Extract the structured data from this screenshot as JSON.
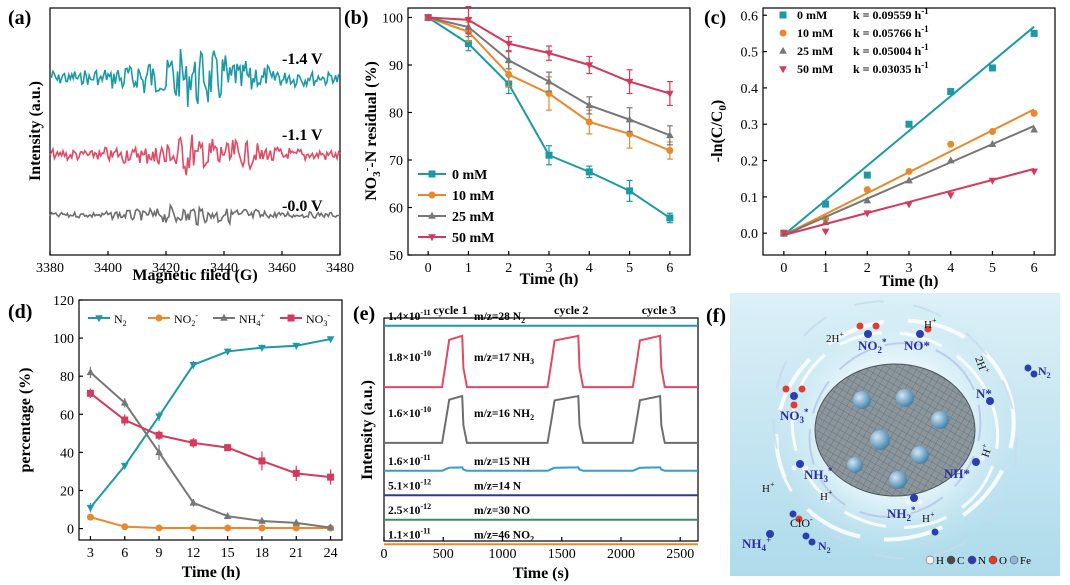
{
  "colors": {
    "teal": "#1b9aa6",
    "red": "#e04a64",
    "gray": "#6e6e6e",
    "orange": "#e8892b",
    "gray2": "#777777",
    "pink": "#d43a5b",
    "blue": "#2f7fc2",
    "navy": "#2c3b91",
    "green": "#3a8c6a",
    "sky_top": "#dcf0f7",
    "sky_bottom": "#aedbeb"
  },
  "panels": {
    "a": "(a)",
    "b": "(b)",
    "c": "(c)",
    "d": "(d)",
    "e": "(e)",
    "f": "(f)"
  },
  "chart_data": [
    {
      "panel": "a",
      "type": "line",
      "title": "",
      "xlabel": "Magnetic filed (G)",
      "ylabel": "Intensity (a.u.)",
      "xlim": [
        3380,
        3480
      ],
      "x_ticks": [
        3380,
        3400,
        3420,
        3440,
        3460,
        3480
      ],
      "series": [
        {
          "name": "-1.4 V",
          "label": "-1.4 V",
          "color": "#1b9aa6",
          "offset": 2.0,
          "amp": 1.0
        },
        {
          "name": "-1.1 V",
          "label": "-1.1 V",
          "color": "#e04a64",
          "offset": 1.0,
          "amp": 0.75
        },
        {
          "name": "-0.0 V",
          "label": "-0.0 V",
          "color": "#6e6e6e",
          "offset": 0.0,
          "amp": 0.35
        }
      ]
    },
    {
      "panel": "b",
      "type": "line",
      "title": "",
      "xlabel": "Time (h)",
      "ylabel": "NO3--N residual (%)",
      "ylabel_parts": {
        "a": "NO",
        "sub": "3",
        "sup": "-",
        "b": "-N residual (%)"
      },
      "xlim": [
        -0.5,
        6.5
      ],
      "ylim": [
        50,
        102
      ],
      "x_ticks": [
        0,
        1,
        2,
        3,
        4,
        5,
        6
      ],
      "y_ticks": [
        50,
        60,
        70,
        80,
        90,
        100
      ],
      "x": [
        0,
        1,
        2,
        3,
        4,
        5,
        6
      ],
      "series": [
        {
          "name": "0 mM",
          "color": "#1b9aa6",
          "marker": "square",
          "values": [
            100,
            94.5,
            86,
            71,
            67.5,
            63.5,
            57.8
          ],
          "err": [
            0.5,
            1.5,
            2.0,
            2.0,
            1.2,
            2.2,
            1.0
          ]
        },
        {
          "name": "10 mM",
          "color": "#e8892b",
          "marker": "circle",
          "values": [
            100,
            97,
            88,
            84,
            78,
            75.5,
            72
          ],
          "err": [
            0.5,
            2.0,
            2.5,
            3.5,
            2.5,
            3.0,
            1.8
          ]
        },
        {
          "name": "25 mM",
          "color": "#777777",
          "marker": "triangle-up",
          "values": [
            100,
            98,
            91,
            86.5,
            81.5,
            78.5,
            75.2
          ],
          "err": [
            0.5,
            2.0,
            1.8,
            2.0,
            1.8,
            2.5,
            2.0
          ]
        },
        {
          "name": "50 mM",
          "color": "#d43a5b",
          "marker": "triangle-down",
          "values": [
            100,
            99.5,
            94.5,
            92.5,
            90,
            86.5,
            84
          ],
          "err": [
            0.5,
            2.8,
            1.5,
            1.5,
            1.8,
            2.5,
            2.5
          ]
        }
      ]
    },
    {
      "panel": "c",
      "type": "scatter",
      "title": "",
      "xlabel": "Time (h)",
      "ylabel": "-ln(C/C0)",
      "ylabel_parts": {
        "a": "-ln(C/C",
        "sub": "0",
        "b": ")"
      },
      "xlim": [
        -0.5,
        6.5
      ],
      "ylim": [
        -0.06,
        0.62
      ],
      "x_ticks": [
        0,
        1,
        2,
        3,
        4,
        5,
        6
      ],
      "y_ticks": [
        0.0,
        0.1,
        0.2,
        0.3,
        0.4,
        0.5,
        0.6
      ],
      "x": [
        0,
        1,
        2,
        3,
        4,
        5,
        6
      ],
      "series": [
        {
          "name": "0 mM",
          "k_label": "k = 0.09559 h",
          "k": 0.09559,
          "color": "#1b9aa6",
          "marker": "square",
          "values": [
            0,
            0.08,
            0.16,
            0.3,
            0.39,
            0.455,
            0.55
          ]
        },
        {
          "name": "10 mM",
          "k_label": "k = 0.05766 h",
          "k": 0.05766,
          "color": "#e8892b",
          "marker": "circle",
          "values": [
            0,
            0.04,
            0.12,
            0.17,
            0.245,
            0.28,
            0.33
          ]
        },
        {
          "name": "25 mM",
          "k_label": "k = 0.05004 h",
          "k": 0.05004,
          "color": "#777777",
          "marker": "triangle-up",
          "values": [
            0,
            0.03,
            0.09,
            0.145,
            0.2,
            0.245,
            0.285
          ]
        },
        {
          "name": "50 mM",
          "k_label": "k = 0.03035 h",
          "k": 0.03035,
          "color": "#d43a5b",
          "marker": "triangle-down",
          "values": [
            0,
            0.005,
            0.055,
            0.08,
            0.105,
            0.145,
            0.17
          ]
        }
      ],
      "k_unit_sup": "-1"
    },
    {
      "panel": "d",
      "type": "line",
      "title": "",
      "xlabel": "Time (h)",
      "ylabel": "percentage (%)",
      "xlim": [
        2,
        25
      ],
      "ylim": [
        -6,
        120
      ],
      "x_ticks": [
        3,
        6,
        9,
        12,
        15,
        18,
        21,
        24
      ],
      "y_ticks": [
        0,
        20,
        40,
        60,
        80,
        100,
        120
      ],
      "x": [
        3,
        6,
        9,
        12,
        15,
        18,
        21,
        24
      ],
      "series": [
        {
          "name": "N2",
          "legend": {
            "a": "N",
            "sub": "2",
            "sup": ""
          },
          "color": "#1b9aa6",
          "marker": "triangle-down",
          "values": [
            11,
            33,
            59,
            86,
            93,
            95,
            96,
            99.5
          ],
          "err": [
            2.5,
            1.5,
            2.5,
            2.0,
            1.5,
            1.5,
            1.5,
            0.5
          ]
        },
        {
          "name": "NO2-",
          "legend": {
            "a": "NO",
            "sub": "2",
            "sup": "-"
          },
          "color": "#e8892b",
          "marker": "circle",
          "values": [
            6,
            1,
            0.3,
            0.3,
            0.3,
            0.3,
            0.3,
            0.3
          ],
          "err": [
            1.5,
            0.5,
            0.3,
            0.3,
            0.3,
            0.3,
            0.3,
            0.3
          ]
        },
        {
          "name": "NH4+",
          "legend": {
            "a": "NH",
            "sub": "4",
            "sup": "+"
          },
          "color": "#777777",
          "marker": "triangle-up",
          "values": [
            82,
            66,
            40,
            13.5,
            6.5,
            4,
            3,
            0.5
          ],
          "err": [
            3,
            2.5,
            4,
            2.0,
            1.5,
            1.5,
            1.0,
            0.5
          ]
        },
        {
          "name": "NO3-",
          "legend": {
            "a": "NO",
            "sub": "3",
            "sup": "-"
          },
          "color": "#d43a5b",
          "marker": "square",
          "values": [
            71,
            57,
            49,
            45,
            42.5,
            35.5,
            29,
            27
          ],
          "err": [
            2.5,
            3.0,
            2.5,
            2.5,
            1.5,
            5.0,
            4.0,
            4.0
          ]
        }
      ]
    },
    {
      "panel": "e",
      "type": "line",
      "title": "",
      "xlabel": "Time (s)",
      "ylabel": "Intensity (a.u.)",
      "xlim": [
        0,
        2650
      ],
      "x_ticks": [
        0,
        500,
        1000,
        1500,
        2000,
        2500
      ],
      "cycles": [
        "cycle 1",
        "cycle 2",
        "cycle 3"
      ],
      "cycle_positions_s": [
        560,
        1580,
        2320
      ],
      "pulses": [
        [
          490,
          660
        ],
        [
          1380,
          1640
        ],
        [
          2100,
          2330
        ]
      ],
      "series": [
        {
          "scale": "1.4×10",
          "exp": "-11",
          "label_a": "m/z=28 N",
          "label_sub": "2",
          "color": "#1b9aa6",
          "base": 0.965,
          "pulse": 0.0
        },
        {
          "scale": "1.8×10",
          "exp": "-10",
          "label_a": "m/z=17 NH",
          "label_sub": "3",
          "color": "#e04a64",
          "base": 0.69,
          "pulse": 0.23
        },
        {
          "scale": "1.6×10",
          "exp": "-10",
          "label_a": "m/z=16 NH",
          "label_sub": "2",
          "color": "#6e6e6e",
          "base": 0.44,
          "pulse": 0.21
        },
        {
          "scale": "1.6×10",
          "exp": "-11",
          "label_a": "m/z=15 NH",
          "label_sub": "",
          "color": "#2f9fd0",
          "base": 0.315,
          "pulse": 0.015
        },
        {
          "scale": "5.1×10",
          "exp": "-12",
          "label_a": "m/z=14 N",
          "label_sub": "",
          "color": "#2c3b91",
          "base": 0.205,
          "pulse": 0.0
        },
        {
          "scale": "2.5×10",
          "exp": "-12",
          "label_a": "m/z=30 NO",
          "label_sub": "",
          "color": "#3a8c6a",
          "base": 0.095,
          "pulse": 0.0
        },
        {
          "scale": "1.1×10",
          "exp": "-11",
          "label_a": "m/z=46 NO",
          "label_sub": "2",
          "color": "#e8892b",
          "base": -0.015,
          "pulse": 0.0
        }
      ]
    }
  ],
  "schematic": {
    "labels": {
      "h_plus": "H",
      "two_h": "2H",
      "no2": {
        "a": "NO",
        "sub": "2",
        "sup": "*"
      },
      "no": "NO*",
      "no3": {
        "a": "NO",
        "sub": "3",
        "sup": "*"
      },
      "n_star": "N*",
      "n2": {
        "a": "N",
        "sub": "2"
      },
      "nh3": {
        "a": "NH",
        "sub": "3",
        "sup": "*"
      },
      "nh": "NH*",
      "nh2": {
        "a": "NH",
        "sub": "2",
        "sup": "*"
      },
      "nh4": {
        "a": "NH",
        "sub": "4",
        "sup": "+"
      },
      "clo": "ClO",
      "plus": "+",
      "minus": "-"
    },
    "element_legend": [
      {
        "symbol": "H",
        "color": "#f2f2f2"
      },
      {
        "symbol": "C",
        "color": "#4a4a4a"
      },
      {
        "symbol": "N",
        "color": "#2b3eb0"
      },
      {
        "symbol": "O",
        "color": "#e23b30"
      },
      {
        "symbol": "Fe",
        "color": "#8fb8d6"
      }
    ]
  }
}
